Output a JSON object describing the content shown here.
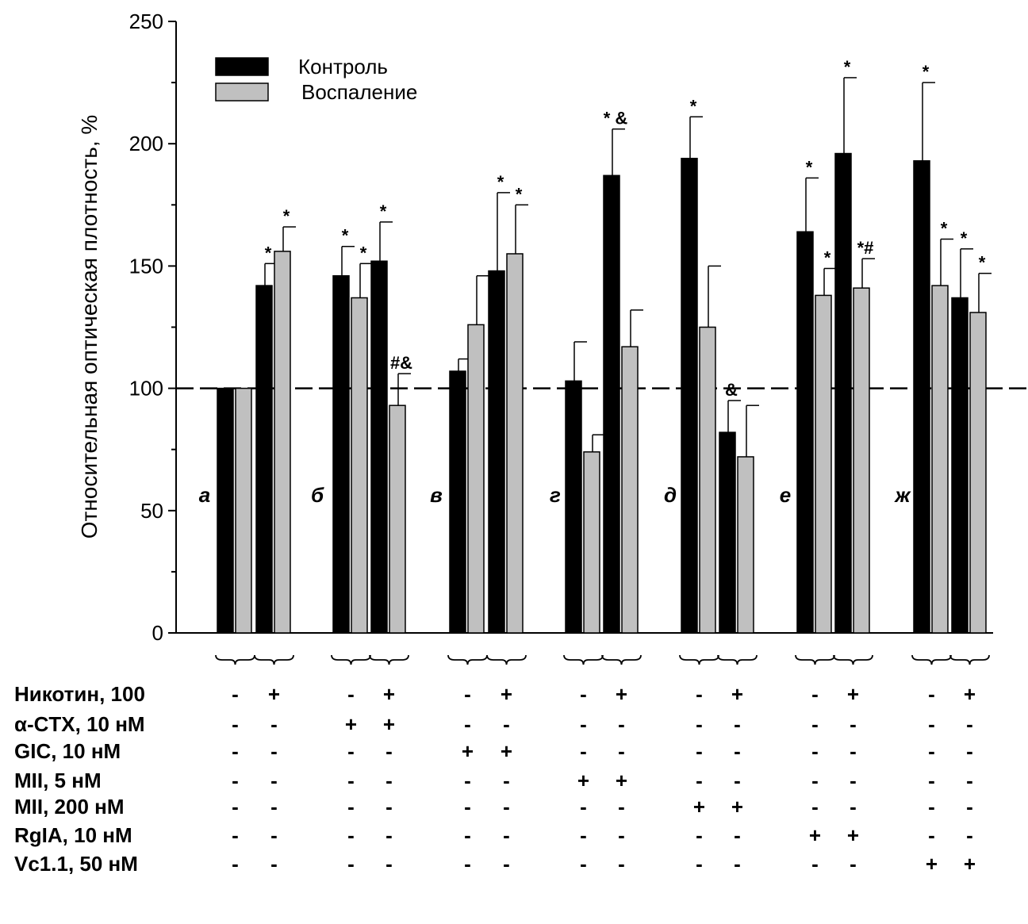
{
  "chart_data": {
    "type": "bar",
    "ylabel": "Относительная оптическая плотность, %",
    "ylim": [
      0,
      250
    ],
    "yticks": [
      0,
      50,
      100,
      150,
      200,
      250
    ],
    "reference_line": 100,
    "legend": {
      "placement": "top-left",
      "entries": [
        {
          "name": "Контроль",
          "color": "#000000"
        },
        {
          "name": "Воспаление",
          "color": "#c0c0c0"
        }
      ]
    },
    "groups": [
      {
        "label": "а",
        "bars": [
          {
            "series": "Контроль",
            "value": 100,
            "err": 0,
            "mark": ""
          },
          {
            "series": "Воспаление",
            "value": 100,
            "err": 0,
            "mark": ""
          },
          {
            "series": "Контроль",
            "value": 142,
            "err": 9,
            "mark": "*"
          },
          {
            "series": "Воспаление",
            "value": 156,
            "err": 10,
            "mark": "*"
          }
        ]
      },
      {
        "label": "б",
        "bars": [
          {
            "series": "Контроль",
            "value": 146,
            "err": 12,
            "mark": "*"
          },
          {
            "series": "Воспаление",
            "value": 137,
            "err": 14,
            "mark": "*"
          },
          {
            "series": "Контроль",
            "value": 152,
            "err": 16,
            "mark": "*"
          },
          {
            "series": "Воспаление",
            "value": 93,
            "err": 13,
            "mark": "#&"
          }
        ]
      },
      {
        "label": "в",
        "bars": [
          {
            "series": "Контроль",
            "value": 107,
            "err": 5,
            "mark": ""
          },
          {
            "series": "Воспаление",
            "value": 126,
            "err": 20,
            "mark": ""
          },
          {
            "series": "Контроль",
            "value": 148,
            "err": 32,
            "mark": "*"
          },
          {
            "series": "Воспаление",
            "value": 155,
            "err": 20,
            "mark": "*"
          }
        ]
      },
      {
        "label": "г",
        "bars": [
          {
            "series": "Контроль",
            "value": 103,
            "err": 16,
            "mark": ""
          },
          {
            "series": "Воспаление",
            "value": 74,
            "err": 7,
            "mark": ""
          },
          {
            "series": "Контроль",
            "value": 187,
            "err": 19,
            "mark": "* &"
          },
          {
            "series": "Воспаление",
            "value": 117,
            "err": 15,
            "mark": ""
          }
        ]
      },
      {
        "label": "д",
        "bars": [
          {
            "series": "Контроль",
            "value": 194,
            "err": 17,
            "mark": "*"
          },
          {
            "series": "Воспаление",
            "value": 125,
            "err": 25,
            "mark": ""
          },
          {
            "series": "Контроль",
            "value": 82,
            "err": 13,
            "mark": "&"
          },
          {
            "series": "Воспаление",
            "value": 72,
            "err": 21,
            "mark": ""
          }
        ]
      },
      {
        "label": "е",
        "bars": [
          {
            "series": "Контроль",
            "value": 164,
            "err": 22,
            "mark": "*"
          },
          {
            "series": "Воспаление",
            "value": 138,
            "err": 11,
            "mark": "*"
          },
          {
            "series": "Контроль",
            "value": 196,
            "err": 31,
            "mark": "*"
          },
          {
            "series": "Воспаление",
            "value": 141,
            "err": 12,
            "mark": "*#"
          }
        ]
      },
      {
        "label": "ж",
        "bars": [
          {
            "series": "Контроль",
            "value": 193,
            "err": 32,
            "mark": "*"
          },
          {
            "series": "Воспаление",
            "value": 142,
            "err": 19,
            "mark": "*"
          },
          {
            "series": "Контроль",
            "value": 137,
            "err": 20,
            "mark": "*"
          },
          {
            "series": "Воспаление",
            "value": 131,
            "err": 16,
            "mark": "*"
          }
        ]
      }
    ],
    "treatment_table": [
      {
        "label": "Никотин, 100",
        "values": [
          "-",
          "+",
          "-",
          "+",
          "-",
          "+",
          "-",
          "+",
          "-",
          "+",
          "-",
          "+",
          "-",
          "+"
        ]
      },
      {
        "label": "α-CTX, 10 нМ",
        "values": [
          "-",
          "-",
          "+",
          "+",
          "-",
          "-",
          "-",
          "-",
          "-",
          "-",
          "-",
          "-",
          "-",
          "-"
        ]
      },
      {
        "label": "GIC, 10 нМ",
        "values": [
          "-",
          "-",
          "-",
          "-",
          "+",
          "+",
          "-",
          "-",
          "-",
          "-",
          "-",
          "-",
          "-",
          "-"
        ]
      },
      {
        "label": "MII, 5 нМ",
        "values": [
          "-",
          "-",
          "-",
          "-",
          "-",
          "-",
          "+",
          "+",
          "-",
          "-",
          "-",
          "-",
          "-",
          "-"
        ]
      },
      {
        "label": "MII, 200 нМ",
        "values": [
          "-",
          "-",
          "-",
          "-",
          "-",
          "-",
          "-",
          "-",
          "+",
          "+",
          "-",
          "-",
          "-",
          "-"
        ]
      },
      {
        "label": "RgIA, 10 нМ",
        "values": [
          "-",
          "-",
          "-",
          "-",
          "-",
          "-",
          "-",
          "-",
          "-",
          "-",
          "+",
          "+",
          "-",
          "-"
        ]
      },
      {
        "label": "Vc1.1, 50 нМ",
        "values": [
          "-",
          "-",
          "-",
          "-",
          "-",
          "-",
          "-",
          "-",
          "-",
          "-",
          "-",
          "-",
          "+",
          "+"
        ]
      }
    ]
  }
}
